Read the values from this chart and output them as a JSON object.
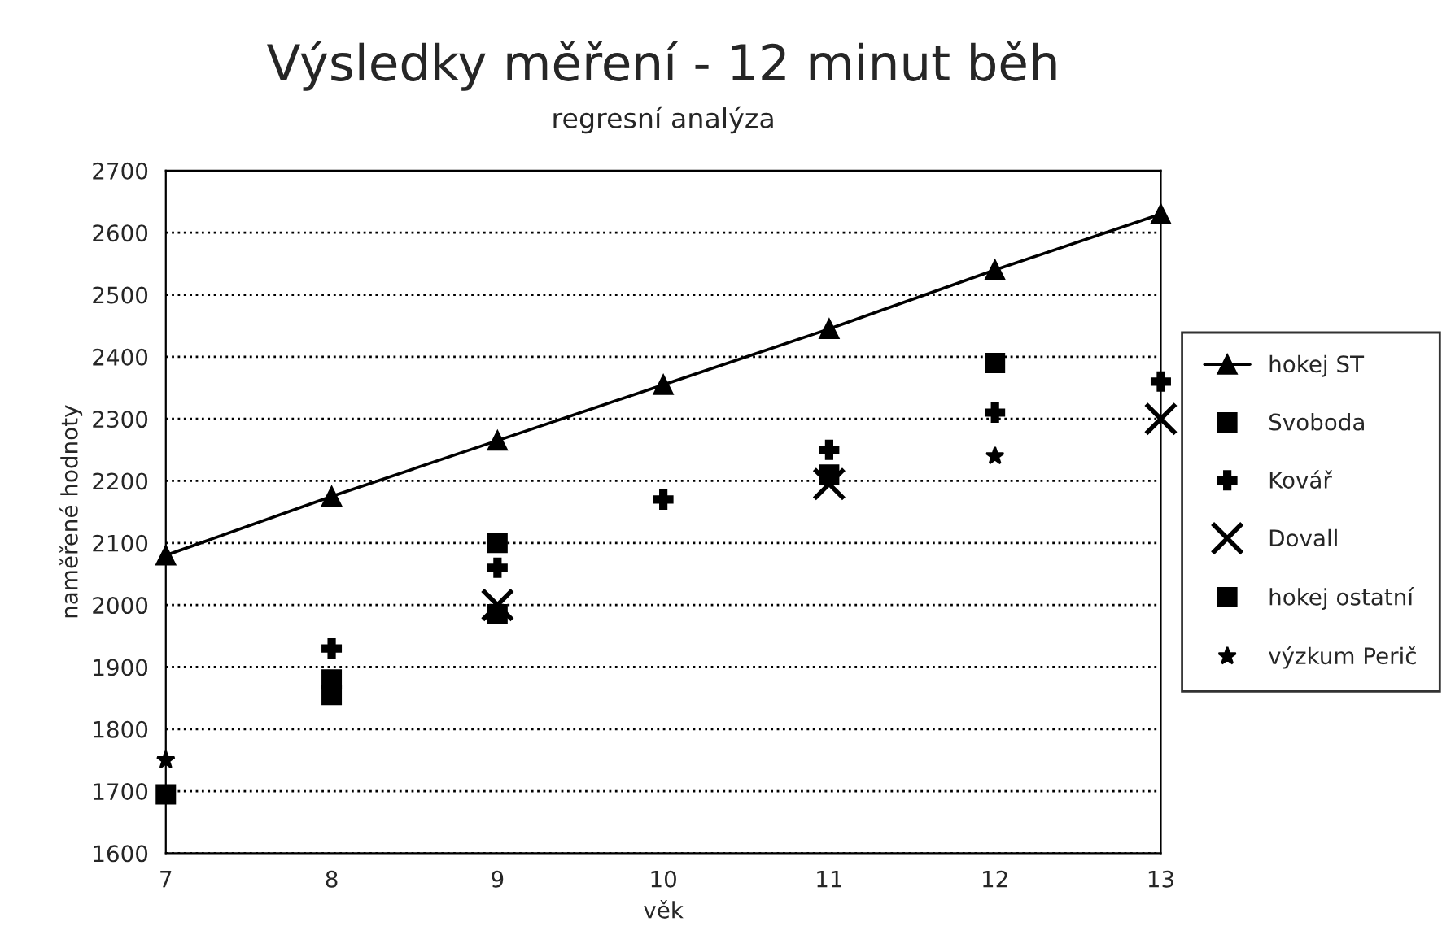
{
  "chart_data": {
    "type": "scatter",
    "title": "Výsledky měření - 12 minut běh",
    "subtitle": "regresní analýza",
    "xlabel": "věk",
    "ylabel": "naměřené hodnoty",
    "x": [
      7,
      8,
      9,
      10,
      11,
      12,
      13
    ],
    "series": [
      {
        "name": "hokej ST",
        "type": "line",
        "color": "#000000",
        "marker": "triangle",
        "line_style": "solid",
        "values": [
          2080,
          2175,
          2265,
          2355,
          2445,
          2540,
          2630
        ]
      },
      {
        "name": "Svoboda",
        "color": "#000000",
        "marker": "square",
        "values": [
          null,
          1855,
          2100,
          null,
          2210,
          2390,
          null
        ]
      },
      {
        "name": "Kovář",
        "color": "#000000",
        "marker": "cross",
        "values": [
          null,
          1930,
          2060,
          2170,
          2250,
          2310,
          2360
        ]
      },
      {
        "name": "Dovall",
        "color": "#000000",
        "marker": "x",
        "values": [
          null,
          null,
          2000,
          null,
          2195,
          null,
          2300
        ]
      },
      {
        "name": "hokej ostatní",
        "color": "#000000",
        "marker": "square",
        "values": [
          1695,
          1880,
          1985,
          null,
          null,
          null,
          null
        ]
      },
      {
        "name": "výzkum Perič",
        "color": "#000000",
        "marker": "star",
        "values": [
          1750,
          null,
          null,
          null,
          null,
          2240,
          null
        ]
      }
    ],
    "xlim": [
      7,
      13
    ],
    "xticks": [
      7,
      8,
      9,
      10,
      11,
      12,
      13
    ],
    "ylim": [
      1600,
      2700
    ],
    "yticks": [
      1600,
      1700,
      1800,
      1900,
      2000,
      2100,
      2200,
      2300,
      2400,
      2500,
      2600,
      2700
    ],
    "grid": "y",
    "legend": "right"
  }
}
